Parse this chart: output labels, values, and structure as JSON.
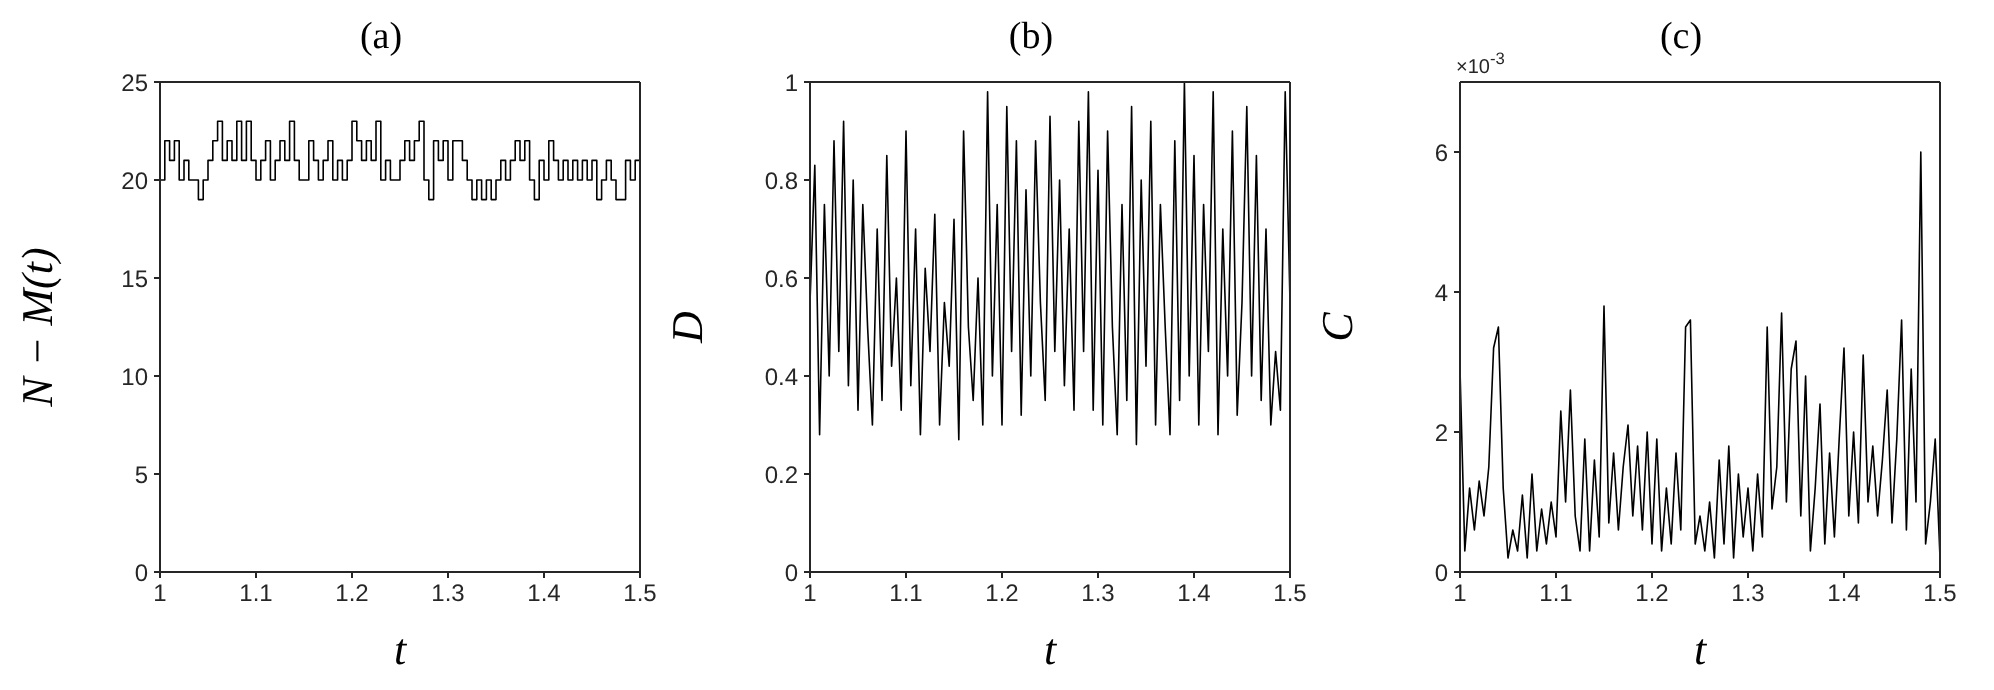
{
  "chart_data": [
    {
      "type": "step",
      "title": "(a)",
      "xlabel": "t",
      "ylabel": "N − M(t)",
      "xlim": [
        1,
        1.5
      ],
      "xticks": [
        1,
        1.1,
        1.2,
        1.3,
        1.4,
        1.5
      ],
      "ylim": [
        0,
        25
      ],
      "yticks": [
        0,
        5,
        10,
        15,
        20,
        25
      ],
      "x": [
        1,
        1.005,
        1.01,
        1.015,
        1.02,
        1.025,
        1.03,
        1.035,
        1.04,
        1.045,
        1.05,
        1.055,
        1.06,
        1.065,
        1.07,
        1.075,
        1.08,
        1.085,
        1.09,
        1.095,
        1.1,
        1.105,
        1.11,
        1.115,
        1.12,
        1.125,
        1.13,
        1.135,
        1.14,
        1.145,
        1.15,
        1.155,
        1.16,
        1.165,
        1.17,
        1.175,
        1.18,
        1.185,
        1.19,
        1.195,
        1.2,
        1.205,
        1.21,
        1.215,
        1.22,
        1.225,
        1.23,
        1.235,
        1.24,
        1.245,
        1.25,
        1.255,
        1.26,
        1.265,
        1.27,
        1.275,
        1.28,
        1.285,
        1.29,
        1.295,
        1.3,
        1.305,
        1.31,
        1.315,
        1.32,
        1.325,
        1.33,
        1.335,
        1.34,
        1.345,
        1.35,
        1.355,
        1.36,
        1.365,
        1.37,
        1.375,
        1.38,
        1.385,
        1.39,
        1.395,
        1.4,
        1.405,
        1.41,
        1.415,
        1.42,
        1.425,
        1.43,
        1.435,
        1.44,
        1.445,
        1.45,
        1.455,
        1.46,
        1.465,
        1.47,
        1.475,
        1.48,
        1.485,
        1.49,
        1.495,
        1.5
      ],
      "series": [
        {
          "color": "#000000",
          "values": [
            20,
            22,
            21,
            22,
            20,
            21,
            20,
            20,
            19,
            20,
            21,
            22,
            23,
            21,
            22,
            21,
            23,
            21,
            23,
            21,
            20,
            21,
            22,
            20,
            21,
            22,
            21,
            23,
            21,
            20,
            20,
            22,
            21,
            20,
            21,
            22,
            20,
            21,
            20,
            21,
            23,
            22,
            21,
            22,
            21,
            23,
            20,
            21,
            20,
            20,
            21,
            22,
            21,
            22,
            23,
            20,
            19,
            22,
            21,
            22,
            20,
            22,
            22,
            21,
            20,
            19,
            20,
            19,
            20,
            19,
            20,
            21,
            20,
            21,
            22,
            21,
            22,
            20,
            19,
            21,
            20,
            22,
            21,
            20,
            21,
            20,
            21,
            20,
            21,
            20,
            21,
            19,
            20,
            21,
            20,
            19,
            19,
            21,
            20,
            21,
            23
          ]
        }
      ]
    },
    {
      "type": "line",
      "title": "(b)",
      "xlabel": "t",
      "ylabel": "D",
      "xlim": [
        1,
        1.5
      ],
      "xticks": [
        1,
        1.1,
        1.2,
        1.3,
        1.4,
        1.5
      ],
      "ylim": [
        0,
        1
      ],
      "yticks": [
        0,
        0.2,
        0.4,
        0.6,
        0.8,
        1
      ],
      "x": [
        1,
        1.005,
        1.01,
        1.015,
        1.02,
        1.025,
        1.03,
        1.035,
        1.04,
        1.045,
        1.05,
        1.055,
        1.06,
        1.065,
        1.07,
        1.075,
        1.08,
        1.085,
        1.09,
        1.095,
        1.1,
        1.105,
        1.11,
        1.115,
        1.12,
        1.125,
        1.13,
        1.135,
        1.14,
        1.145,
        1.15,
        1.155,
        1.16,
        1.165,
        1.17,
        1.175,
        1.18,
        1.185,
        1.19,
        1.195,
        1.2,
        1.205,
        1.21,
        1.215,
        1.22,
        1.225,
        1.23,
        1.235,
        1.24,
        1.245,
        1.25,
        1.255,
        1.26,
        1.265,
        1.27,
        1.275,
        1.28,
        1.285,
        1.29,
        1.295,
        1.3,
        1.305,
        1.31,
        1.315,
        1.32,
        1.325,
        1.33,
        1.335,
        1.34,
        1.345,
        1.35,
        1.355,
        1.36,
        1.365,
        1.37,
        1.375,
        1.38,
        1.385,
        1.39,
        1.395,
        1.4,
        1.405,
        1.41,
        1.415,
        1.42,
        1.425,
        1.43,
        1.435,
        1.44,
        1.445,
        1.45,
        1.455,
        1.46,
        1.465,
        1.47,
        1.475,
        1.48,
        1.485,
        1.49,
        1.495,
        1.5
      ],
      "series": [
        {
          "color": "#000000",
          "values": [
            0.55,
            0.83,
            0.28,
            0.75,
            0.4,
            0.88,
            0.45,
            0.92,
            0.38,
            0.8,
            0.33,
            0.75,
            0.5,
            0.3,
            0.7,
            0.35,
            0.85,
            0.42,
            0.6,
            0.33,
            0.9,
            0.38,
            0.7,
            0.28,
            0.62,
            0.45,
            0.73,
            0.3,
            0.55,
            0.42,
            0.72,
            0.27,
            0.9,
            0.5,
            0.35,
            0.6,
            0.3,
            0.98,
            0.4,
            0.75,
            0.3,
            0.95,
            0.45,
            0.88,
            0.32,
            0.78,
            0.4,
            0.88,
            0.55,
            0.35,
            0.93,
            0.45,
            0.8,
            0.38,
            0.7,
            0.33,
            0.92,
            0.45,
            0.98,
            0.33,
            0.82,
            0.3,
            0.9,
            0.5,
            0.28,
            0.75,
            0.35,
            0.95,
            0.26,
            0.8,
            0.42,
            0.92,
            0.3,
            0.75,
            0.5,
            0.28,
            0.88,
            0.35,
            1,
            0.4,
            0.85,
            0.3,
            0.75,
            0.45,
            0.98,
            0.28,
            0.7,
            0.4,
            0.9,
            0.32,
            0.55,
            0.95,
            0.4,
            0.85,
            0.35,
            0.7,
            0.3,
            0.45,
            0.33,
            0.98,
            0.55
          ]
        }
      ]
    },
    {
      "type": "line",
      "title": "(c)",
      "xlabel": "t",
      "ylabel": "C",
      "annotations": [
        "×10$^{-3}$"
      ],
      "xlim": [
        1,
        1.5
      ],
      "xticks": [
        1,
        1.1,
        1.2,
        1.3,
        1.4,
        1.5
      ],
      "ylim": [
        0,
        7
      ],
      "yticks": [
        0,
        2,
        4,
        6
      ],
      "x": [
        1,
        1.005,
        1.01,
        1.015,
        1.02,
        1.025,
        1.03,
        1.035,
        1.04,
        1.045,
        1.05,
        1.055,
        1.06,
        1.065,
        1.07,
        1.075,
        1.08,
        1.085,
        1.09,
        1.095,
        1.1,
        1.105,
        1.11,
        1.115,
        1.12,
        1.125,
        1.13,
        1.135,
        1.14,
        1.145,
        1.15,
        1.155,
        1.16,
        1.165,
        1.17,
        1.175,
        1.18,
        1.185,
        1.19,
        1.195,
        1.2,
        1.205,
        1.21,
        1.215,
        1.22,
        1.225,
        1.23,
        1.235,
        1.24,
        1.245,
        1.25,
        1.255,
        1.26,
        1.265,
        1.27,
        1.275,
        1.28,
        1.285,
        1.29,
        1.295,
        1.3,
        1.305,
        1.31,
        1.315,
        1.32,
        1.325,
        1.33,
        1.335,
        1.34,
        1.345,
        1.35,
        1.355,
        1.36,
        1.365,
        1.37,
        1.375,
        1.38,
        1.385,
        1.39,
        1.395,
        1.4,
        1.405,
        1.41,
        1.415,
        1.42,
        1.425,
        1.43,
        1.435,
        1.44,
        1.445,
        1.45,
        1.455,
        1.46,
        1.465,
        1.47,
        1.475,
        1.48,
        1.485,
        1.49,
        1.495,
        1.5
      ],
      "series": [
        {
          "color": "#000000",
          "values": [
            2.9,
            0.3,
            1.2,
            0.6,
            1.3,
            0.8,
            1.5,
            3.2,
            3.5,
            1.2,
            0.2,
            0.6,
            0.3,
            1.1,
            0.2,
            1.4,
            0.3,
            0.9,
            0.4,
            1,
            0.5,
            2.3,
            1,
            2.6,
            0.8,
            0.3,
            1.9,
            0.3,
            1.6,
            0.5,
            3.8,
            0.7,
            1.7,
            0.6,
            1.5,
            2.1,
            0.8,
            1.8,
            0.6,
            2,
            0.4,
            1.9,
            0.3,
            1.2,
            0.4,
            1.7,
            0.6,
            3.5,
            3.6,
            0.4,
            0.8,
            0.3,
            1,
            0.2,
            1.6,
            0.4,
            1.8,
            0.2,
            1.4,
            0.5,
            1.2,
            0.3,
            1.4,
            0.5,
            3.5,
            0.9,
            1.5,
            3.7,
            1,
            2.9,
            3.3,
            0.8,
            2.8,
            0.3,
            1.2,
            2.4,
            0.4,
            1.7,
            0.5,
            1.9,
            3.2,
            0.8,
            2,
            0.7,
            3.1,
            1,
            1.8,
            0.8,
            1.6,
            2.6,
            0.7,
            1.9,
            3.6,
            0.6,
            2.9,
            1,
            6,
            0.4,
            1,
            1.9,
            0.2
          ]
        }
      ]
    }
  ]
}
